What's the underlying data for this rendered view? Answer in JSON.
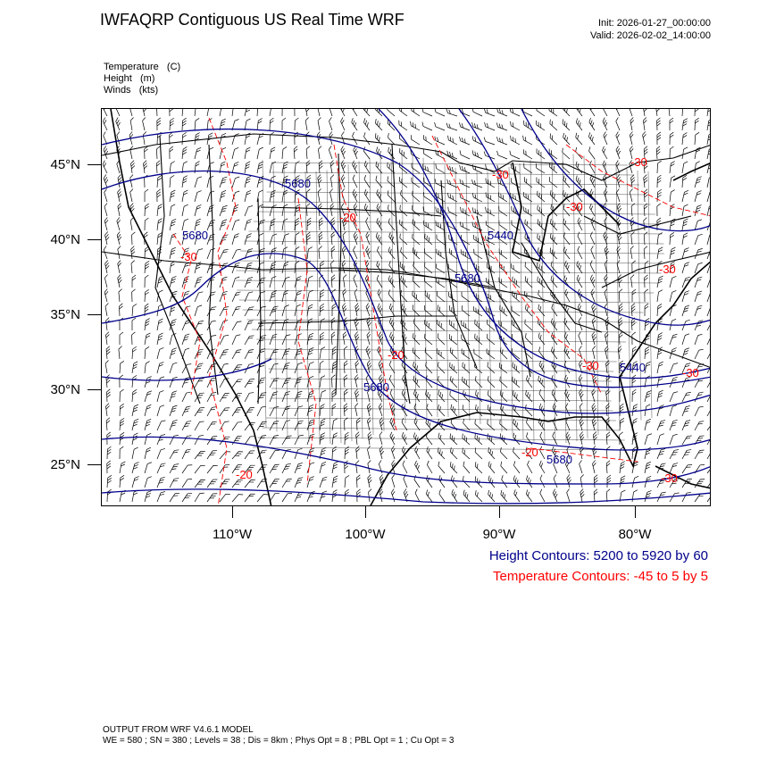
{
  "header": {
    "title": "IWFAQRP Contiguous US Real Time WRF",
    "init": "Init: 2026-01-27_00:00:00",
    "valid": "Valid: 2026-02-02_14:00:00"
  },
  "fields": {
    "temperature": "Temperature   (C)",
    "height": "Height   (m)",
    "winds": "Winds   (kts)"
  },
  "axes": {
    "lat_labels": [
      "45°N",
      "40°N",
      "35°N",
      "30°N",
      "25°N"
    ],
    "lon_labels": [
      "110°W",
      "100°W",
      "90°W",
      "80°W"
    ]
  },
  "map": {
    "height_contour_labels": [
      "5680",
      "5680",
      "5440",
      "5680",
      "5680",
      "5440",
      "5680"
    ],
    "temperature_contour_labels": [
      "-30",
      "-20",
      "-30",
      "-30",
      "-30",
      "-30",
      "-20",
      "-30",
      "-30",
      "-20",
      "-20",
      "-30"
    ],
    "colors": {
      "height": "#00008b",
      "temperature": "#ff0000",
      "land": "#000000",
      "wind": "#000000"
    }
  },
  "legend": {
    "height_contours": "Height Contours: 5200 to 5920 by 60",
    "temperature_contours": "Temperature Contours: -45 to 5 by 5"
  },
  "footer": {
    "line1": "OUTPUT FROM WRF V4.6.1 MODEL",
    "line2": "WE = 580 ; SN = 380 ; Levels = 38 ; Dis = 8km ; Phys Opt = 8 ; PBL Opt = 1 ; Cu Opt = 3"
  }
}
